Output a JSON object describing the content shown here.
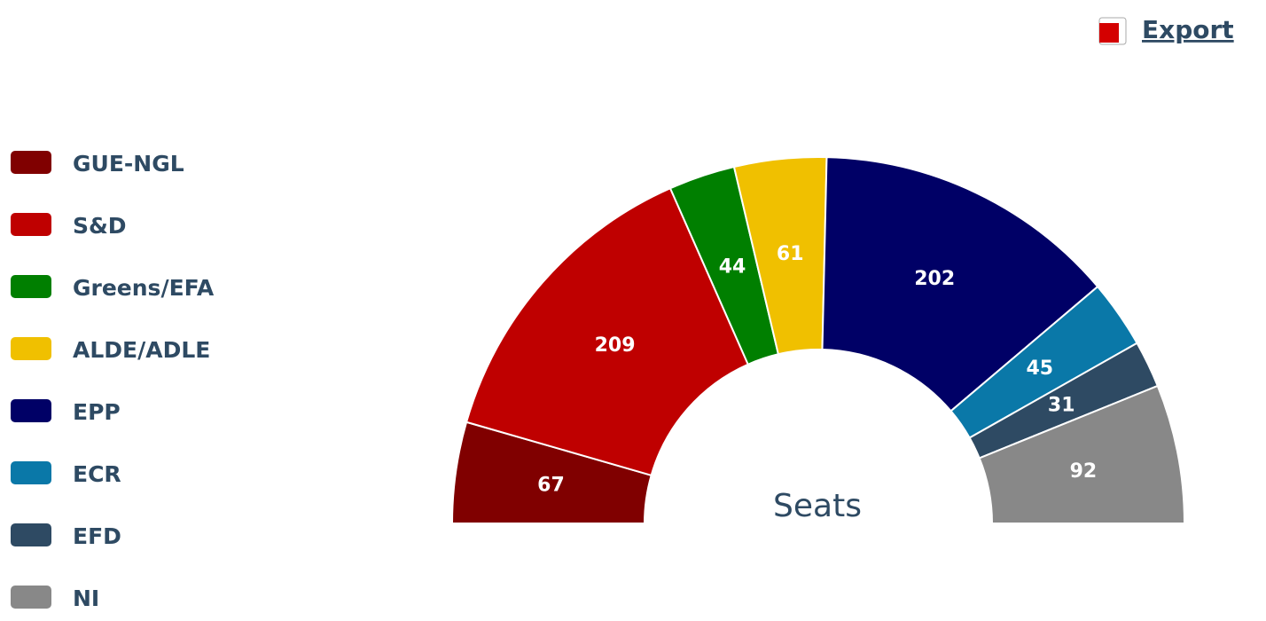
{
  "toolbar": {
    "export": "Export"
  },
  "chart_data": {
    "type": "pie",
    "shape": "semicircle-donut",
    "center_label": "Seats",
    "categories": [
      "GUE-NGL",
      "S&D",
      "Greens/EFA",
      "ALDE/ADLE",
      "EPP",
      "ECR",
      "EFD",
      "NI"
    ],
    "values": [
      67,
      209,
      44,
      61,
      202,
      45,
      31,
      92
    ],
    "colors": [
      "#800000",
      "#bf0000",
      "#007f00",
      "#f0c000",
      "#000066",
      "#0a78a8",
      "#2e4a63",
      "#888888"
    ],
    "legend": "left"
  }
}
